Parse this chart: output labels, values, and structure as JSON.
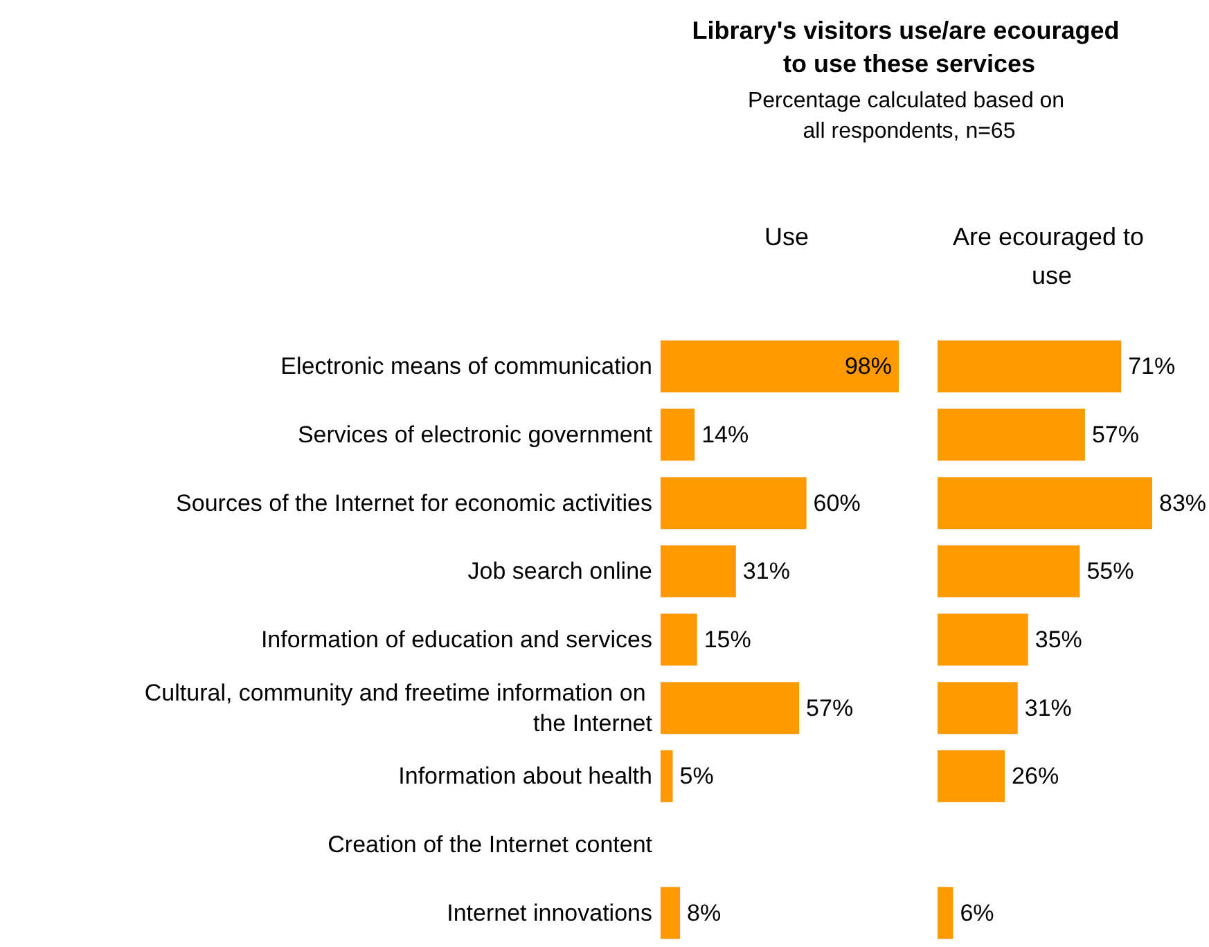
{
  "chart_data": [
    {
      "type": "other",
      "title": "Library's visitors use/are ecouraged to use these services",
      "subtitle": "Percentage calculated based on all respondents, n=65"
    },
    {
      "type": "bar",
      "orientation": "horizontal",
      "title": "Use",
      "categories": [
        "Electronic means of communication",
        "Services of electronic government",
        "Sources of the Internet for economic activities",
        "Job search online",
        "Information of education and services",
        "Cultural, community and freetime information on the Internet",
        "Information about health",
        "Creation of the Internet content",
        "Internet innovations"
      ],
      "values": [
        98,
        14,
        60,
        31,
        15,
        57,
        5,
        null,
        8
      ],
      "value_labels": [
        "98%",
        "14%",
        "60%",
        "31%",
        "15%",
        "57%",
        "5%",
        null,
        "8%"
      ],
      "color": "#ff9900"
    },
    {
      "type": "bar",
      "orientation": "horizontal",
      "title": "Are ecouraged to use",
      "categories": [
        null,
        null,
        null,
        null,
        null,
        null,
        null,
        null,
        null
      ],
      "values": [
        71,
        57,
        83,
        55,
        35,
        31,
        26,
        null,
        6
      ],
      "value_labels": [
        "71%",
        "57%",
        "83%",
        "55%",
        "35%",
        "31%",
        "26%",
        null,
        "6%"
      ],
      "color": "#ff9900"
    }
  ]
}
